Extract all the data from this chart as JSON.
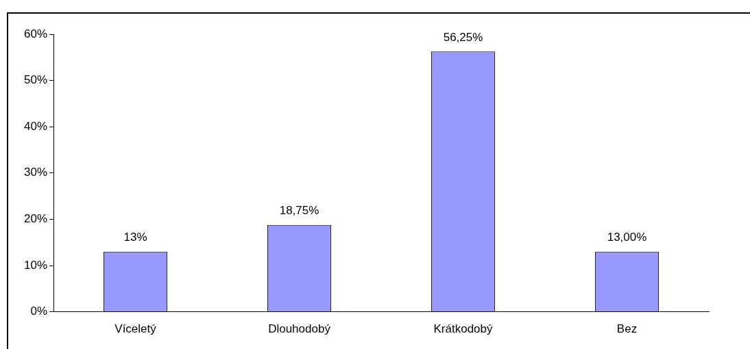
{
  "chart_data": {
    "type": "bar",
    "categories": [
      "Víceletý",
      "Dlouhodobý",
      "Krátkodobý",
      "Bez"
    ],
    "values": [
      13,
      18.75,
      56.25,
      13
    ],
    "value_labels": [
      "13%",
      "18,75%",
      "56,25%",
      "13,00%"
    ],
    "color": "#9999ff",
    "ylim": [
      0,
      60
    ],
    "yticks": [
      {
        "value": 0,
        "label": "0%"
      },
      {
        "value": 10,
        "label": "10%"
      },
      {
        "value": 20,
        "label": "20%"
      },
      {
        "value": 30,
        "label": "30%"
      },
      {
        "value": 40,
        "label": "40%"
      },
      {
        "value": 50,
        "label": "50%"
      },
      {
        "value": 60,
        "label": "60%"
      }
    ],
    "grid": false,
    "legend": false
  }
}
